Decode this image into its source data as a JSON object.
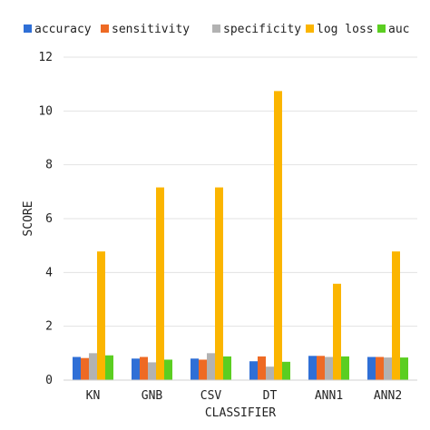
{
  "chart_data": {
    "type": "bar",
    "title": "",
    "xlabel": "CLASSIFIER",
    "ylabel": "SCORE",
    "categories": [
      "KN",
      "GNB",
      "CSV",
      "DT",
      "ANN1",
      "ANN2"
    ],
    "ylim": [
      0,
      12
    ],
    "yticks": [
      0,
      2,
      4,
      6,
      8,
      10,
      12
    ],
    "grid": true,
    "legend_position": "top",
    "series": [
      {
        "name": "accuracy",
        "color": "#2f6fd6",
        "values": [
          0.86,
          0.8,
          0.8,
          0.7,
          0.9,
          0.86
        ]
      },
      {
        "name": "sensitivity",
        "color": "#ee6a24",
        "values": [
          0.82,
          0.86,
          0.76,
          0.88,
          0.9,
          0.86
        ]
      },
      {
        "name": "specificity",
        "color": "#b2b2b2",
        "values": [
          1.0,
          0.66,
          1.0,
          0.5,
          0.86,
          0.84
        ]
      },
      {
        "name": "log loss",
        "color": "#fbb500",
        "values": [
          4.78,
          7.16,
          7.16,
          10.74,
          3.58,
          4.78
        ]
      },
      {
        "name": "auc",
        "color": "#5bce21",
        "values": [
          0.92,
          0.76,
          0.88,
          0.68,
          0.88,
          0.84
        ]
      }
    ]
  }
}
